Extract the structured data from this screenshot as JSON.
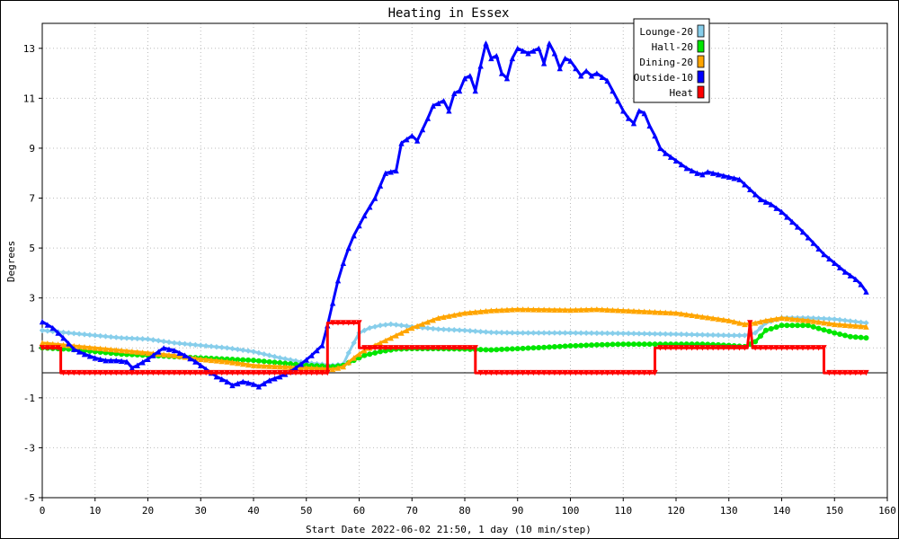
{
  "chart_data": {
    "type": "line",
    "title": "Heating in Essex",
    "xlabel": "Start Date 2022-06-02 21:50, 1 day (10 min/step)",
    "ylabel": "Degrees",
    "xlim": [
      0,
      160
    ],
    "ylim": [
      -5,
      14
    ],
    "xticks": [
      0,
      10,
      20,
      30,
      40,
      50,
      60,
      70,
      80,
      90,
      100,
      110,
      120,
      130,
      140,
      150,
      160
    ],
    "yticks": [
      -5,
      -3,
      -1,
      1,
      3,
      5,
      7,
      9,
      11,
      13
    ],
    "grid": true,
    "legend_position": "top-right",
    "series": [
      {
        "name": "Lounge-20",
        "color": "#87ceeb",
        "marker": "diamond",
        "points": [
          [
            0,
            1.7
          ],
          [
            5,
            1.6
          ],
          [
            10,
            1.5
          ],
          [
            15,
            1.4
          ],
          [
            20,
            1.35
          ],
          [
            25,
            1.2
          ],
          [
            30,
            1.1
          ],
          [
            35,
            1.0
          ],
          [
            40,
            0.85
          ],
          [
            45,
            0.6
          ],
          [
            50,
            0.4
          ],
          [
            55,
            0.3
          ],
          [
            57,
            0.35
          ],
          [
            58,
            0.8
          ],
          [
            59,
            1.2
          ],
          [
            60,
            1.6
          ],
          [
            62,
            1.8
          ],
          [
            64,
            1.9
          ],
          [
            66,
            1.95
          ],
          [
            70,
            1.85
          ],
          [
            75,
            1.75
          ],
          [
            80,
            1.7
          ],
          [
            85,
            1.62
          ],
          [
            90,
            1.6
          ],
          [
            100,
            1.6
          ],
          [
            110,
            1.58
          ],
          [
            120,
            1.55
          ],
          [
            130,
            1.5
          ],
          [
            133,
            1.5
          ],
          [
            135,
            1.6
          ],
          [
            137,
            2.0
          ],
          [
            140,
            2.2
          ],
          [
            145,
            2.2
          ],
          [
            150,
            2.15
          ],
          [
            156,
            2.0
          ]
        ]
      },
      {
        "name": "Hall-20",
        "color": "#00e600",
        "marker": "circle",
        "points": [
          [
            0,
            1.0
          ],
          [
            5,
            0.95
          ],
          [
            10,
            0.85
          ],
          [
            15,
            0.75
          ],
          [
            20,
            0.7
          ],
          [
            25,
            0.65
          ],
          [
            30,
            0.6
          ],
          [
            35,
            0.55
          ],
          [
            40,
            0.5
          ],
          [
            45,
            0.4
          ],
          [
            50,
            0.3
          ],
          [
            55,
            0.25
          ],
          [
            57,
            0.3
          ],
          [
            59,
            0.5
          ],
          [
            61,
            0.7
          ],
          [
            64,
            0.85
          ],
          [
            67,
            0.95
          ],
          [
            70,
            0.97
          ],
          [
            75,
            0.97
          ],
          [
            80,
            0.95
          ],
          [
            85,
            0.92
          ],
          [
            90,
            0.97
          ],
          [
            95,
            1.02
          ],
          [
            100,
            1.08
          ],
          [
            105,
            1.12
          ],
          [
            110,
            1.15
          ],
          [
            115,
            1.15
          ],
          [
            120,
            1.15
          ],
          [
            125,
            1.15
          ],
          [
            130,
            1.1
          ],
          [
            133,
            1.05
          ],
          [
            135,
            1.25
          ],
          [
            137,
            1.7
          ],
          [
            140,
            1.9
          ],
          [
            145,
            1.9
          ],
          [
            150,
            1.6
          ],
          [
            153,
            1.45
          ],
          [
            156,
            1.4
          ]
        ]
      },
      {
        "name": "Dining-20",
        "color": "#ffa500",
        "marker": "triangle",
        "points": [
          [
            0,
            1.2
          ],
          [
            5,
            1.1
          ],
          [
            10,
            1.0
          ],
          [
            15,
            0.9
          ],
          [
            20,
            0.8
          ],
          [
            25,
            0.7
          ],
          [
            30,
            0.55
          ],
          [
            35,
            0.45
          ],
          [
            40,
            0.3
          ],
          [
            45,
            0.25
          ],
          [
            50,
            0.2
          ],
          [
            55,
            0.15
          ],
          [
            57,
            0.25
          ],
          [
            59,
            0.6
          ],
          [
            61,
            0.9
          ],
          [
            64,
            1.2
          ],
          [
            67,
            1.5
          ],
          [
            70,
            1.8
          ],
          [
            75,
            2.2
          ],
          [
            80,
            2.4
          ],
          [
            85,
            2.5
          ],
          [
            90,
            2.55
          ],
          [
            100,
            2.52
          ],
          [
            105,
            2.55
          ],
          [
            110,
            2.5
          ],
          [
            115,
            2.45
          ],
          [
            120,
            2.4
          ],
          [
            125,
            2.25
          ],
          [
            130,
            2.1
          ],
          [
            133,
            1.95
          ],
          [
            135,
            2.0
          ],
          [
            137,
            2.1
          ],
          [
            140,
            2.2
          ],
          [
            145,
            2.1
          ],
          [
            150,
            1.95
          ],
          [
            156,
            1.85
          ]
        ]
      },
      {
        "name": "Outside-10",
        "color": "#0000ff",
        "marker": "triangle",
        "points": [
          [
            0,
            2.05
          ],
          [
            2,
            1.8
          ],
          [
            4,
            1.4
          ],
          [
            6,
            0.95
          ],
          [
            8,
            0.75
          ],
          [
            10,
            0.6
          ],
          [
            12,
            0.5
          ],
          [
            14,
            0.5
          ],
          [
            16,
            0.45
          ],
          [
            17,
            0.2
          ],
          [
            18,
            0.3
          ],
          [
            20,
            0.55
          ],
          [
            22,
            0.85
          ],
          [
            23,
            1.0
          ],
          [
            25,
            0.9
          ],
          [
            27,
            0.7
          ],
          [
            29,
            0.45
          ],
          [
            31,
            0.15
          ],
          [
            33,
            -0.15
          ],
          [
            35,
            -0.35
          ],
          [
            36,
            -0.5
          ],
          [
            38,
            -0.35
          ],
          [
            40,
            -0.45
          ],
          [
            41,
            -0.55
          ],
          [
            43,
            -0.3
          ],
          [
            45,
            -0.15
          ],
          [
            47,
            0.05
          ],
          [
            49,
            0.35
          ],
          [
            51,
            0.7
          ],
          [
            53,
            1.1
          ],
          [
            54,
            1.9
          ],
          [
            55,
            2.8
          ],
          [
            56,
            3.7
          ],
          [
            57,
            4.4
          ],
          [
            58,
            5.0
          ],
          [
            59,
            5.5
          ],
          [
            61,
            6.3
          ],
          [
            63,
            7.0
          ],
          [
            65,
            8.0
          ],
          [
            67,
            8.1
          ],
          [
            68,
            9.2
          ],
          [
            70,
            9.5
          ],
          [
            71,
            9.3
          ],
          [
            73,
            10.2
          ],
          [
            74,
            10.7
          ],
          [
            76,
            10.9
          ],
          [
            77,
            10.5
          ],
          [
            78,
            11.2
          ],
          [
            79,
            11.3
          ],
          [
            80,
            11.8
          ],
          [
            81,
            11.9
          ],
          [
            82,
            11.3
          ],
          [
            83,
            12.3
          ],
          [
            84,
            13.2
          ],
          [
            85,
            12.6
          ],
          [
            86,
            12.7
          ],
          [
            87,
            12.0
          ],
          [
            88,
            11.8
          ],
          [
            89,
            12.6
          ],
          [
            90,
            13.0
          ],
          [
            91,
            12.9
          ],
          [
            92,
            12.8
          ],
          [
            93,
            12.9
          ],
          [
            94,
            13.0
          ],
          [
            95,
            12.4
          ],
          [
            96,
            13.2
          ],
          [
            97,
            12.8
          ],
          [
            98,
            12.2
          ],
          [
            99,
            12.6
          ],
          [
            100,
            12.5
          ],
          [
            101,
            12.2
          ],
          [
            102,
            11.9
          ],
          [
            103,
            12.1
          ],
          [
            104,
            11.9
          ],
          [
            105,
            12.0
          ],
          [
            107,
            11.7
          ],
          [
            108,
            11.3
          ],
          [
            109,
            10.9
          ],
          [
            110,
            10.5
          ],
          [
            111,
            10.2
          ],
          [
            112,
            10.0
          ],
          [
            113,
            10.5
          ],
          [
            114,
            10.4
          ],
          [
            115,
            9.9
          ],
          [
            116,
            9.5
          ],
          [
            117,
            9.0
          ],
          [
            118,
            8.8
          ],
          [
            120,
            8.5
          ],
          [
            122,
            8.2
          ],
          [
            124,
            8.0
          ],
          [
            125,
            7.95
          ],
          [
            126,
            8.05
          ],
          [
            128,
            7.95
          ],
          [
            130,
            7.85
          ],
          [
            132,
            7.75
          ],
          [
            134,
            7.35
          ],
          [
            136,
            6.95
          ],
          [
            138,
            6.75
          ],
          [
            140,
            6.45
          ],
          [
            142,
            6.05
          ],
          [
            144,
            5.65
          ],
          [
            146,
            5.2
          ],
          [
            148,
            4.75
          ],
          [
            150,
            4.4
          ],
          [
            152,
            4.05
          ],
          [
            154,
            3.75
          ],
          [
            155,
            3.55
          ],
          [
            156,
            3.25
          ]
        ]
      },
      {
        "name": "Heat",
        "color": "#ff0000",
        "marker": "triangle-down",
        "points": [
          [
            0,
            1.0
          ],
          [
            3.5,
            1.0
          ],
          [
            3.5,
            0.0
          ],
          [
            54,
            0.0
          ],
          [
            54,
            2.0
          ],
          [
            60,
            2.0
          ],
          [
            60,
            1.0
          ],
          [
            82,
            1.0
          ],
          [
            82,
            0.0
          ],
          [
            116,
            0.0
          ],
          [
            116,
            1.0
          ],
          [
            133.5,
            1.0
          ],
          [
            134,
            2.0
          ],
          [
            134.5,
            1.0
          ],
          [
            148,
            1.0
          ],
          [
            148,
            0.0
          ],
          [
            156,
            0.0
          ]
        ]
      }
    ]
  }
}
